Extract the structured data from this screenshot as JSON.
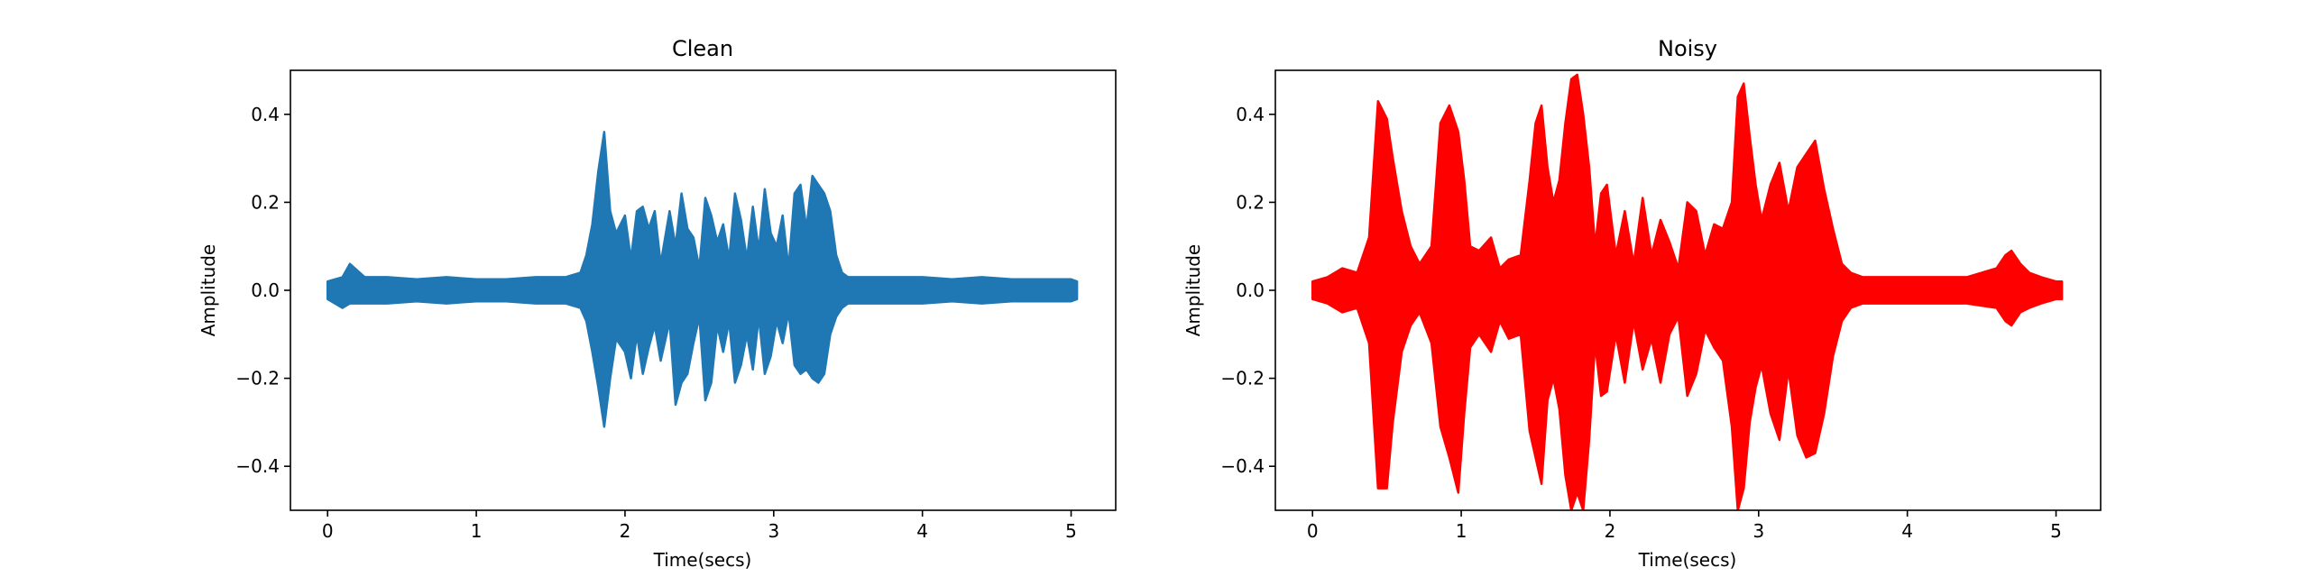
{
  "chart_data": [
    {
      "type": "line",
      "title": "Clean",
      "xlabel": "Time(secs)",
      "ylabel": "Amplitude",
      "xlim": [
        -0.25,
        5.3
      ],
      "ylim": [
        -0.5,
        0.5
      ],
      "x_ticks": [
        0,
        1,
        2,
        3,
        4,
        5
      ],
      "x_tick_labels": [
        "0",
        "1",
        "2",
        "3",
        "4",
        "5"
      ],
      "y_ticks": [
        -0.4,
        -0.2,
        0.0,
        0.2,
        0.4
      ],
      "y_tick_labels": [
        "−0.4",
        "−0.2",
        "0.0",
        "0.2",
        "0.4"
      ],
      "grid": false,
      "series": [
        {
          "color": "#1f77b4",
          "x": [
            0.0,
            0.1,
            0.15,
            0.25,
            0.4,
            0.6,
            0.8,
            1.0,
            1.2,
            1.4,
            1.6,
            1.7,
            1.74,
            1.78,
            1.82,
            1.86,
            1.9,
            1.94,
            2.0,
            2.04,
            2.08,
            2.12,
            2.16,
            2.2,
            2.24,
            2.3,
            2.34,
            2.38,
            2.42,
            2.46,
            2.5,
            2.54,
            2.58,
            2.62,
            2.66,
            2.7,
            2.74,
            2.78,
            2.82,
            2.86,
            2.9,
            2.94,
            2.98,
            3.02,
            3.06,
            3.1,
            3.14,
            3.18,
            3.22,
            3.26,
            3.3,
            3.34,
            3.38,
            3.42,
            3.46,
            3.5,
            3.6,
            3.8,
            4.0,
            4.2,
            4.4,
            4.6,
            4.8,
            5.0,
            5.04
          ],
          "upper": [
            0.02,
            0.03,
            0.06,
            0.03,
            0.03,
            0.025,
            0.03,
            0.025,
            0.025,
            0.03,
            0.03,
            0.04,
            0.08,
            0.15,
            0.27,
            0.36,
            0.18,
            0.13,
            0.17,
            0.07,
            0.18,
            0.19,
            0.14,
            0.18,
            0.06,
            0.18,
            0.1,
            0.22,
            0.14,
            0.12,
            0.05,
            0.21,
            0.17,
            0.11,
            0.15,
            0.07,
            0.22,
            0.16,
            0.07,
            0.19,
            0.09,
            0.23,
            0.13,
            0.1,
            0.17,
            0.05,
            0.22,
            0.24,
            0.14,
            0.26,
            0.24,
            0.22,
            0.18,
            0.08,
            0.04,
            0.03,
            0.03,
            0.03,
            0.03,
            0.025,
            0.03,
            0.025,
            0.025,
            0.025,
            0.02
          ],
          "lower": [
            -0.02,
            -0.04,
            -0.03,
            -0.03,
            -0.03,
            -0.025,
            -0.03,
            -0.025,
            -0.025,
            -0.03,
            -0.03,
            -0.04,
            -0.07,
            -0.14,
            -0.22,
            -0.31,
            -0.2,
            -0.11,
            -0.14,
            -0.2,
            -0.1,
            -0.19,
            -0.13,
            -0.08,
            -0.16,
            -0.07,
            -0.26,
            -0.21,
            -0.19,
            -0.12,
            -0.06,
            -0.25,
            -0.21,
            -0.08,
            -0.14,
            -0.07,
            -0.21,
            -0.17,
            -0.1,
            -0.18,
            -0.06,
            -0.19,
            -0.15,
            -0.07,
            -0.12,
            -0.05,
            -0.17,
            -0.19,
            -0.18,
            -0.2,
            -0.21,
            -0.19,
            -0.1,
            -0.06,
            -0.04,
            -0.03,
            -0.03,
            -0.03,
            -0.03,
            -0.025,
            -0.03,
            -0.025,
            -0.025,
            -0.025,
            -0.02
          ]
        }
      ]
    },
    {
      "type": "line",
      "title": "Noisy",
      "xlabel": "Time(secs)",
      "ylabel": "Amplitude",
      "xlim": [
        -0.25,
        5.3
      ],
      "ylim": [
        -0.5,
        0.5
      ],
      "x_ticks": [
        0,
        1,
        2,
        3,
        4,
        5
      ],
      "x_tick_labels": [
        "0",
        "1",
        "2",
        "3",
        "4",
        "5"
      ],
      "y_ticks": [
        -0.4,
        -0.2,
        0.0,
        0.2,
        0.4
      ],
      "y_tick_labels": [
        "−0.4",
        "−0.2",
        "0.0",
        "0.2",
        "0.4"
      ],
      "grid": false,
      "series": [
        {
          "color": "#ff0000",
          "x": [
            0.0,
            0.1,
            0.2,
            0.3,
            0.38,
            0.44,
            0.5,
            0.54,
            0.6,
            0.66,
            0.72,
            0.8,
            0.86,
            0.92,
            0.98,
            1.02,
            1.06,
            1.12,
            1.2,
            1.26,
            1.32,
            1.4,
            1.46,
            1.5,
            1.54,
            1.58,
            1.62,
            1.66,
            1.7,
            1.74,
            1.78,
            1.82,
            1.86,
            1.9,
            1.94,
            1.98,
            2.04,
            2.1,
            2.16,
            2.22,
            2.28,
            2.34,
            2.4,
            2.46,
            2.52,
            2.58,
            2.64,
            2.7,
            2.76,
            2.82,
            2.86,
            2.9,
            2.94,
            2.98,
            3.02,
            3.08,
            3.14,
            3.2,
            3.26,
            3.32,
            3.38,
            3.44,
            3.5,
            3.56,
            3.62,
            3.7,
            3.8,
            4.0,
            4.2,
            4.4,
            4.6,
            4.66,
            4.7,
            4.76,
            4.82,
            4.9,
            5.0,
            5.04
          ],
          "upper": [
            0.02,
            0.03,
            0.05,
            0.04,
            0.12,
            0.43,
            0.39,
            0.3,
            0.18,
            0.1,
            0.06,
            0.1,
            0.38,
            0.42,
            0.36,
            0.25,
            0.1,
            0.09,
            0.12,
            0.05,
            0.07,
            0.08,
            0.25,
            0.38,
            0.42,
            0.28,
            0.2,
            0.25,
            0.38,
            0.48,
            0.49,
            0.4,
            0.28,
            0.1,
            0.22,
            0.24,
            0.08,
            0.18,
            0.06,
            0.21,
            0.08,
            0.16,
            0.11,
            0.05,
            0.2,
            0.18,
            0.08,
            0.15,
            0.14,
            0.2,
            0.44,
            0.47,
            0.35,
            0.24,
            0.16,
            0.24,
            0.29,
            0.18,
            0.28,
            0.31,
            0.34,
            0.23,
            0.14,
            0.06,
            0.04,
            0.03,
            0.03,
            0.03,
            0.03,
            0.03,
            0.05,
            0.08,
            0.09,
            0.06,
            0.04,
            0.03,
            0.02,
            0.02
          ],
          "lower": [
            -0.02,
            -0.03,
            -0.05,
            -0.04,
            -0.12,
            -0.45,
            -0.45,
            -0.3,
            -0.14,
            -0.08,
            -0.05,
            -0.12,
            -0.31,
            -0.38,
            -0.46,
            -0.28,
            -0.13,
            -0.1,
            -0.14,
            -0.07,
            -0.11,
            -0.1,
            -0.32,
            -0.38,
            -0.44,
            -0.25,
            -0.2,
            -0.27,
            -0.42,
            -0.5,
            -0.46,
            -0.5,
            -0.34,
            -0.12,
            -0.24,
            -0.23,
            -0.1,
            -0.21,
            -0.07,
            -0.18,
            -0.11,
            -0.21,
            -0.1,
            -0.06,
            -0.24,
            -0.19,
            -0.09,
            -0.13,
            -0.16,
            -0.31,
            -0.5,
            -0.45,
            -0.3,
            -0.22,
            -0.17,
            -0.28,
            -0.34,
            -0.18,
            -0.33,
            -0.38,
            -0.37,
            -0.28,
            -0.15,
            -0.07,
            -0.04,
            -0.03,
            -0.03,
            -0.03,
            -0.03,
            -0.03,
            -0.04,
            -0.07,
            -0.08,
            -0.05,
            -0.04,
            -0.03,
            -0.02,
            -0.02
          ]
        }
      ]
    }
  ]
}
